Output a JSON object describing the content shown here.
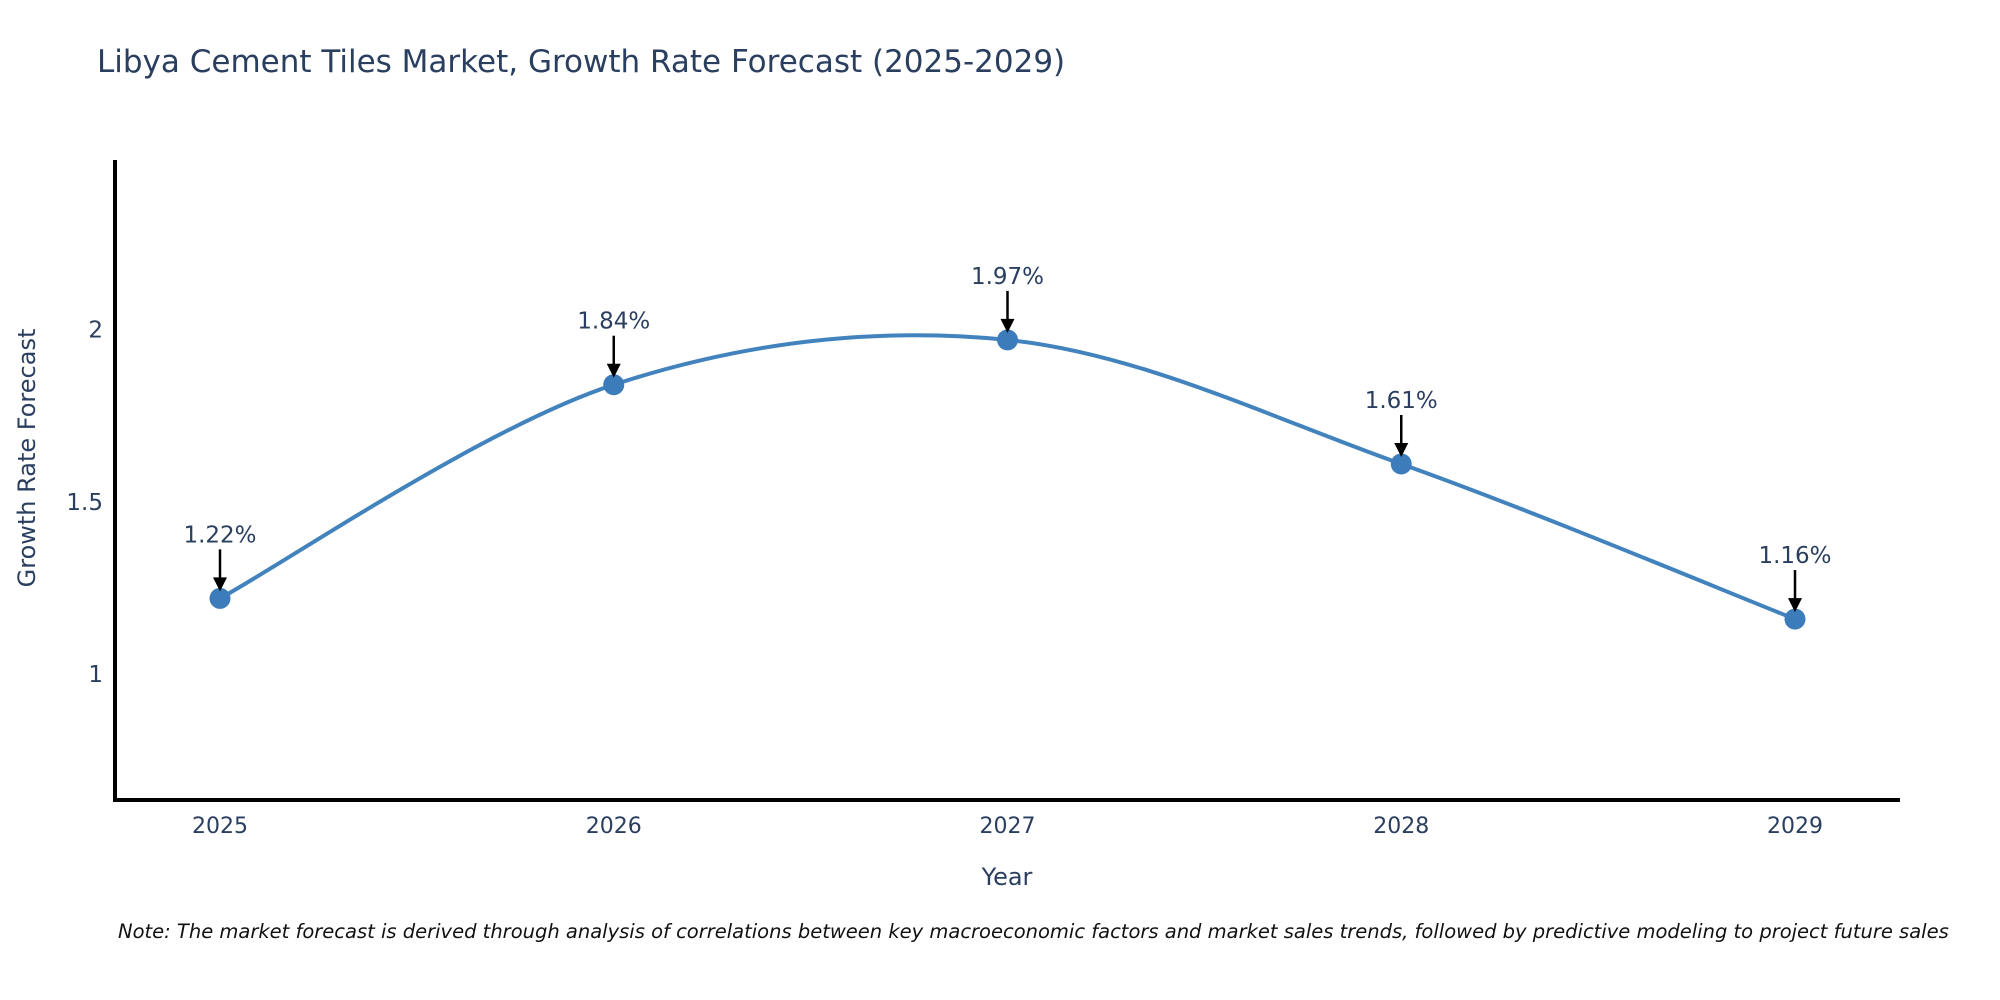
{
  "header": {
    "title": "Libya Cement Tiles Market, Growth Rate Forecast (2025-2029)"
  },
  "footnote": "Note: The market forecast is derived through analysis of correlations between key macroeconomic factors and market sales trends, followed by predictive modeling to project future sales",
  "chart_data": {
    "type": "line",
    "title": "Libya Cement Tiles Market, Growth Rate Forecast (2025-2029)",
    "categories": [
      "2025",
      "2026",
      "2027",
      "2028",
      "2029"
    ],
    "values": [
      1.22,
      1.84,
      1.97,
      1.61,
      1.16
    ],
    "point_labels": [
      "1.22%",
      "1.84%",
      "1.97%",
      "1.61%",
      "1.16%"
    ],
    "xlabel": "Year",
    "ylabel": "Growth Rate Forecast",
    "ytick_labels": [
      "1",
      "1.5",
      "2"
    ],
    "ytick_values": [
      1,
      1.5,
      2
    ],
    "ylim": [
      0.635,
      2.492
    ],
    "line_shape": "spline",
    "grid": false,
    "legend": "none",
    "annotation_style": "value-label-with-down-arrow",
    "colors": {
      "line": "#4283bd",
      "marker": "#3d7cba",
      "axis": "#000000",
      "text": "#2a3f5f",
      "arrow": "#000000",
      "note_text": "#111111",
      "background": "#ffffff"
    }
  }
}
